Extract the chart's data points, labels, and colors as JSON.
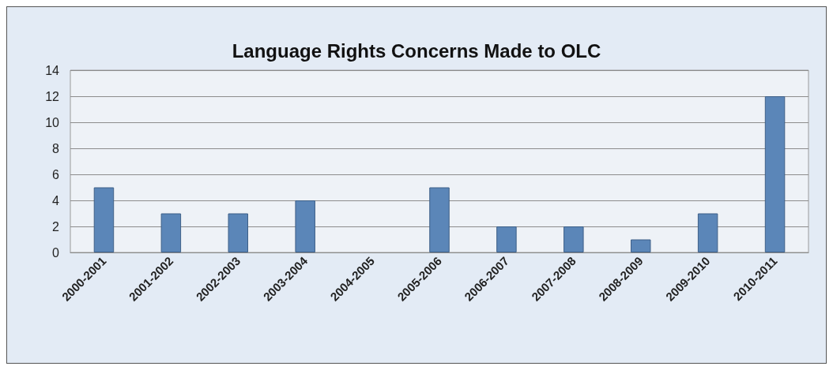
{
  "chart_data": {
    "type": "bar",
    "title": "Language Rights Concerns Made to OLC",
    "categories": [
      "2000-2001",
      "2001-2002",
      "2002-2003",
      "2003-2004",
      "2004-2005",
      "2005-2006",
      "2006-2007",
      "2007-2008",
      "2008-2009",
      "2009-2010",
      "2010-2011"
    ],
    "values": [
      5,
      3,
      3,
      4,
      0,
      5,
      2,
      2,
      1,
      3,
      12
    ],
    "color": "#5b86b8",
    "ylim": [
      0,
      14
    ],
    "yticks": [
      0,
      2,
      4,
      6,
      8,
      10,
      12,
      14
    ],
    "grid": "y"
  }
}
